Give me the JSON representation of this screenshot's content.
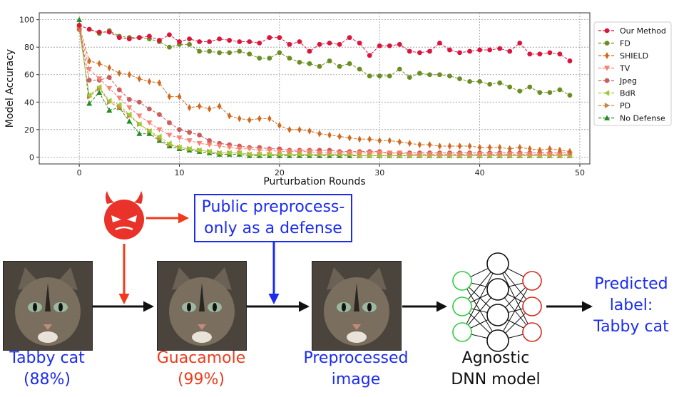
{
  "chart_data": {
    "type": "line",
    "xlabel": "Purturbation Rounds",
    "ylabel": "Model Accuracy",
    "xlim": [
      -4,
      51
    ],
    "ylim": [
      -5,
      105
    ],
    "xticks": [
      0,
      10,
      20,
      30,
      40,
      50
    ],
    "yticks": [
      0,
      20,
      40,
      60,
      80,
      100
    ],
    "grid": true,
    "legend_position": "right",
    "series": [
      {
        "name": "Our Method",
        "color": "#dc143c",
        "marker": "circle",
        "values": [
          96,
          93,
          91,
          91,
          87,
          86,
          87,
          88,
          85,
          89,
          84,
          86,
          84,
          84,
          86,
          85,
          84,
          84,
          83,
          87,
          87,
          82,
          84,
          77,
          82,
          83,
          82,
          87,
          83,
          74,
          81,
          81,
          82,
          77,
          76,
          77,
          83,
          78,
          76,
          77,
          78,
          78,
          79,
          77,
          83,
          75,
          75,
          76,
          75,
          70
        ]
      },
      {
        "name": "FD",
        "color": "#6b8e23",
        "marker": "circle",
        "values": [
          96,
          93,
          90,
          92,
          88,
          87,
          87,
          86,
          84,
          80,
          82,
          82,
          77,
          77,
          76,
          76,
          77,
          75,
          72,
          72,
          76,
          72,
          69,
          68,
          66,
          70,
          66,
          68,
          64,
          59,
          59,
          59,
          64,
          58,
          61,
          60,
          60,
          59,
          57,
          55,
          55,
          53,
          54,
          51,
          48,
          51,
          47,
          47,
          49,
          45
        ]
      },
      {
        "name": "SHIELD",
        "color": "#d2691e",
        "marker": "diamond",
        "values": [
          95,
          70,
          68,
          65,
          61,
          60,
          57,
          55,
          54,
          44,
          44,
          36,
          37,
          35,
          37,
          30,
          28,
          27,
          28,
          28,
          23,
          20,
          20,
          19,
          17,
          16,
          15,
          14,
          13,
          13,
          12,
          12,
          11,
          10,
          9,
          9,
          8,
          8,
          8,
          8,
          7,
          7,
          7,
          6,
          7,
          6,
          5,
          6,
          5,
          4
        ]
      },
      {
        "name": "TV",
        "color": "#fa8072",
        "marker": "triangle-down",
        "values": [
          94,
          64,
          57,
          50,
          43,
          36,
          30,
          25,
          20,
          16,
          14,
          12,
          10,
          9,
          8,
          7,
          6,
          6,
          5,
          5,
          4,
          4,
          4,
          4,
          3,
          3,
          3,
          3,
          3,
          3,
          3,
          3,
          3,
          2,
          2,
          2,
          2,
          2,
          2,
          2,
          2,
          2,
          2,
          2,
          2,
          2,
          2,
          2,
          2,
          2
        ]
      },
      {
        "name": "Jpeg",
        "color": "#cd5c5c",
        "marker": "circle",
        "values": [
          93,
          56,
          56,
          58,
          49,
          42,
          40,
          35,
          31,
          25,
          20,
          18,
          16,
          12,
          10,
          9,
          8,
          7,
          7,
          6,
          6,
          5,
          5,
          5,
          5,
          5,
          4,
          4,
          4,
          4,
          4,
          3,
          3,
          3,
          3,
          3,
          3,
          3,
          3,
          3,
          3,
          3,
          3,
          3,
          3,
          3,
          3,
          3,
          3,
          3
        ]
      },
      {
        "name": "BdR",
        "color": "#9acd32",
        "marker": "triangle-left",
        "values": [
          92,
          45,
          51,
          41,
          38,
          31,
          24,
          19,
          15,
          10,
          7,
          6,
          5,
          4,
          3,
          3,
          3,
          2,
          2,
          2,
          2,
          2,
          2,
          2,
          2,
          2,
          2,
          2,
          1,
          1,
          1,
          1,
          1,
          1,
          1,
          1,
          1,
          1,
          1,
          1,
          1,
          1,
          1,
          1,
          1,
          1,
          1,
          1,
          1,
          1
        ]
      },
      {
        "name": "PD",
        "color": "#cd853f",
        "marker": "triangle-right",
        "values": [
          94,
          44,
          50,
          40,
          36,
          30,
          24,
          19,
          13,
          9,
          7,
          6,
          5,
          4,
          3,
          3,
          3,
          2,
          2,
          2,
          2,
          2,
          2,
          2,
          2,
          2,
          2,
          2,
          1,
          1,
          1,
          1,
          1,
          1,
          1,
          1,
          1,
          1,
          1,
          1,
          1,
          1,
          1,
          1,
          1,
          1,
          1,
          1,
          1,
          1
        ]
      },
      {
        "name": "No Defense",
        "color": "#228b22",
        "marker": "triangle-up",
        "values": [
          100,
          39,
          47,
          34,
          36,
          26,
          17,
          17,
          12,
          8,
          6,
          5,
          4,
          3,
          2,
          2,
          2,
          1,
          1,
          1,
          1,
          1,
          1,
          1,
          1,
          1,
          1,
          1,
          1,
          1,
          1,
          1,
          1,
          1,
          1,
          1,
          1,
          1,
          1,
          1,
          1,
          1,
          1,
          1,
          1,
          1,
          1,
          1,
          1,
          1
        ]
      }
    ]
  },
  "diagram": {
    "defense_line1": "Public preprocess-",
    "defense_line2": "only as a defense",
    "input_label_line1": "Tabby cat",
    "input_label_line2": "(88%)",
    "adv_label_line1": "Guacamole",
    "adv_label_line2": "(99%)",
    "pre_label_line1": "Preprocessed",
    "pre_label_line2": "image",
    "model_label_line1": "Agnostic",
    "model_label_line2": "DNN model",
    "pred_label_line1": "Predicted",
    "pred_label_line2": "label:",
    "pred_label_line3": "Tabby cat",
    "colors": {
      "blue": "#1b2cf0",
      "red": "#f03a1b",
      "devil": "#e8322a",
      "green_node": "#2ecc40",
      "red_node": "#d6281c"
    }
  }
}
